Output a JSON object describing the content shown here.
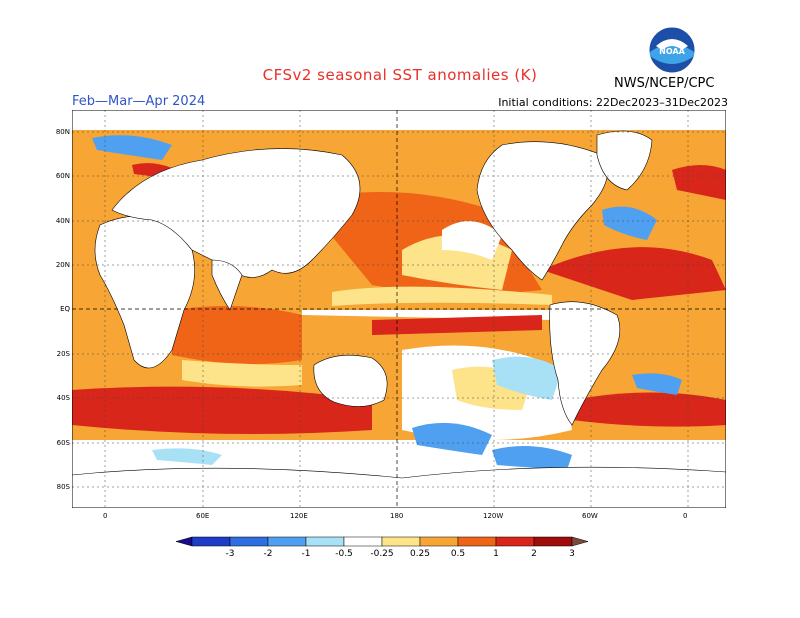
{
  "header": {
    "title": "CFSv2 seasonal SST anomalies (K)",
    "season": "Feb—Mar—Apr 2024",
    "initial_conditions": "Initial conditions: 22Dec2023–31Dec2023",
    "agency": "NWS/NCEP/CPC",
    "logo_text": "NOAA"
  },
  "axes": {
    "lat_labels": [
      "80N",
      "60N",
      "40N",
      "20N",
      "EQ",
      "20S",
      "40S",
      "60S",
      "80S"
    ],
    "lon_labels": [
      "0",
      "60E",
      "120E",
      "180",
      "120W",
      "60W",
      "0"
    ]
  },
  "colorbar": {
    "levels": [
      "-3",
      "-2",
      "-1",
      "-0.5",
      "-0.25",
      "0.25",
      "0.5",
      "1",
      "2",
      "3"
    ],
    "colors": [
      "#1a0a8c",
      "#1e3cc8",
      "#2e6ee0",
      "#4fa0f0",
      "#a8e0f5",
      "#ffffff",
      "#fde38a",
      "#f7a535",
      "#f06418",
      "#d8261a",
      "#a00c0c",
      "#7a4a3a"
    ]
  },
  "colors": {
    "accent_title": "#e8302a",
    "season_text": "#2f55c9"
  }
}
